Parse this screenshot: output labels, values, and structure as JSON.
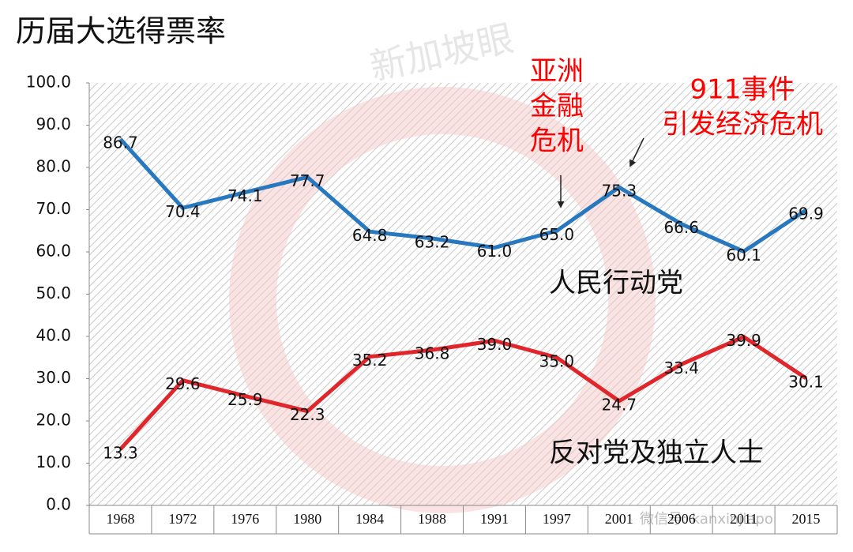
{
  "chart_data": {
    "type": "line",
    "title": "历届大选得票率",
    "categories": [
      "1968",
      "1972",
      "1976",
      "1980",
      "1984",
      "1988",
      "1991",
      "1997",
      "2001",
      "2006",
      "2011",
      "2015"
    ],
    "series": [
      {
        "name": "人民行动党",
        "color": "#2878c0",
        "values": [
          86.7,
          70.4,
          74.1,
          77.7,
          64.8,
          63.2,
          61.0,
          65.0,
          75.3,
          66.6,
          60.1,
          69.9
        ],
        "value_labels": [
          "86.7",
          "70.4",
          "74.1",
          "77.7",
          "64.8",
          "63.2",
          "61.0",
          "65.0",
          "75.3",
          "66.6",
          "60.1",
          "69.9"
        ]
      },
      {
        "name": "反对党及独立人士",
        "color": "#e0262b",
        "values": [
          13.3,
          29.6,
          25.9,
          22.3,
          35.2,
          36.8,
          39.0,
          35.0,
          24.7,
          33.4,
          39.9,
          30.1
        ],
        "value_labels": [
          "13.3",
          "29.6",
          "25.9",
          "22.3",
          "35.2",
          "36.8",
          "39.0",
          "35.0",
          "24.7",
          "33.4",
          "39.9",
          "30.1"
        ]
      }
    ],
    "ylim": [
      0,
      100
    ],
    "yticks": [
      {
        "value": 0,
        "label": "0.0"
      },
      {
        "value": 10,
        "label": "10.0"
      },
      {
        "value": 20,
        "label": "20.0"
      },
      {
        "value": 30,
        "label": "30.0"
      },
      {
        "value": 40,
        "label": "40.0"
      },
      {
        "value": 50,
        "label": "50.0"
      },
      {
        "value": 60,
        "label": "60.0"
      },
      {
        "value": 70,
        "label": "70.0"
      },
      {
        "value": 80,
        "label": "80.0"
      },
      {
        "value": 90,
        "label": "90.0"
      },
      {
        "value": 100,
        "label": "100.0"
      }
    ],
    "annotations": [
      {
        "lines": [
          "亚洲",
          "金融",
          "危机"
        ],
        "color": "#ff0000"
      },
      {
        "lines": [
          "911事件",
          "引发经济危机"
        ],
        "color": "#ff0000"
      }
    ],
    "watermarks": [
      "新加坡眼",
      "微信号: kanxinjiapo"
    ]
  }
}
